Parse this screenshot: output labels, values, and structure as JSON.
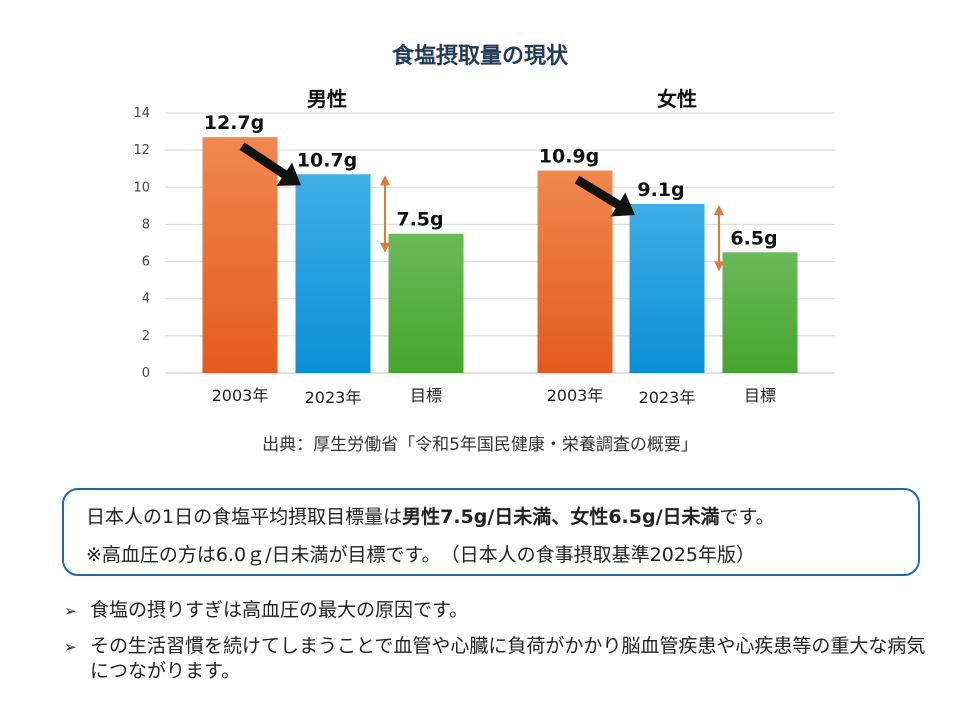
{
  "title": "食塩摂取量の現状",
  "chart_data": [
    {
      "type": "bar",
      "title": "男性",
      "categories": [
        "2003年",
        "2023年",
        "目標"
      ],
      "values": [
        12.7,
        10.7,
        7.5
      ],
      "data_labels": [
        "12.7g",
        "10.7g",
        "7.5g"
      ],
      "colors": [
        "#e8622a",
        "#1e9be0",
        "#52ad3a"
      ],
      "ylim": [
        0,
        14
      ],
      "yticks": [
        0,
        2,
        4,
        6,
        8,
        10,
        12,
        14
      ],
      "grid": true
    },
    {
      "type": "bar",
      "title": "女性",
      "categories": [
        "2003年",
        "2023年",
        "目標"
      ],
      "values": [
        10.9,
        9.1,
        6.5
      ],
      "data_labels": [
        "10.9g",
        "9.1g",
        "6.5g"
      ],
      "colors": [
        "#e8622a",
        "#1e9be0",
        "#52ad3a"
      ],
      "ylim": [
        0,
        14
      ],
      "yticks": [
        0,
        2,
        4,
        6,
        8,
        10,
        12,
        14
      ],
      "grid": true
    }
  ],
  "source": "出典：厚生労働省「令和5年国民健康・栄養調査の概要」",
  "info_box": {
    "line1_a": "日本人の1日の食塩平均摂取目標量は",
    "line1_b": "男性7.5g/日未満",
    "line1_c": "、",
    "line1_d": "女性6.5g/日未満",
    "line1_e": "です。",
    "line2": "※高血圧の方は6.0ｇ/日未満が目標です。　（日本人の食事摂取基準2025年版）"
  },
  "bullets": [
    "食塩の摂りすぎは高血圧の最大の原因です。",
    "その生活習慣を続けてしまうことで血管や心臓に負荷がかかり脳血管疾患や心疾患等の重大な病気につながります。"
  ]
}
